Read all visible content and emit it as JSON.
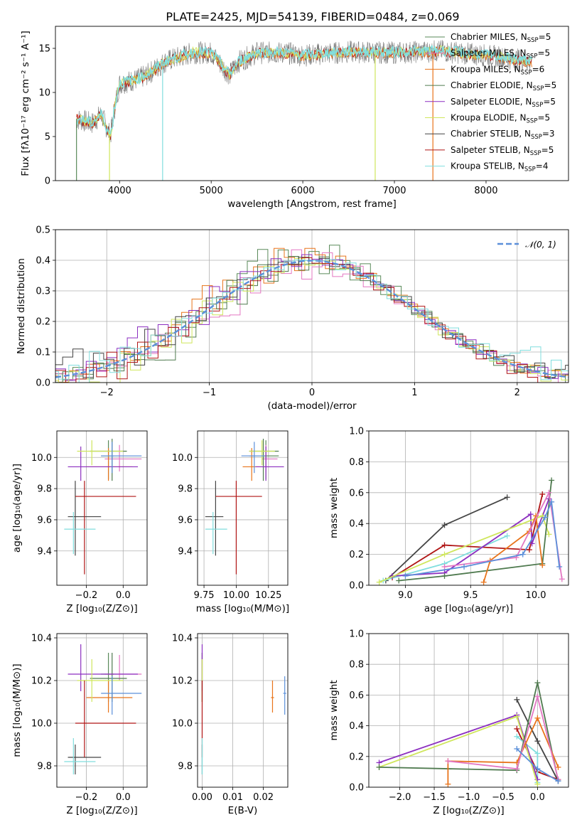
{
  "title": "PLATE=2425, MJD=54139, FIBERID=0484, z=0.069",
  "colors": {
    "Chabrier MILES": "#5a8a5a",
    "Salpeter MILES": "#e377c2",
    "Kroupa MILES": "#e8741b",
    "Chabrier ELODIE": "#4f7a4f",
    "Salpeter ELODIE": "#8c2fc0",
    "Kroupa ELODIE": "#cfe65c",
    "Chabrier STELIB": "#444444",
    "Salpeter STELIB": "#b01515",
    "Kroupa STELIB": "#80dede",
    "blue": "#5b8fd9",
    "gauss": "#5b8fd9"
  },
  "chart_data": [
    {
      "type": "line",
      "title": "PLATE=2425, MJD=54139, FIBERID=0484, z=0.069",
      "xlabel": "wavelength [Angstrom, rest frame]",
      "ylabel": "Flux [fλ10⁻¹⁷ erg cm⁻² s⁻¹ A⁻¹]",
      "xlim": [
        3300,
        8900
      ],
      "ylim": [
        0,
        17.5
      ],
      "xticks": [
        4000,
        5000,
        6000,
        7000,
        8000
      ],
      "yticks": [
        0,
        5,
        10,
        15
      ],
      "legend_position": "upper right",
      "legend": [
        {
          "model": "Chabrier MILES",
          "label": "Chabrier MILES, N",
          "n": "=5"
        },
        {
          "model": "Salpeter MILES",
          "label": "Salpeter MILES, N",
          "n": "=5"
        },
        {
          "model": "Kroupa MILES",
          "label": "Kroupa MILES, N",
          "n": "=6"
        },
        {
          "model": "Chabrier ELODIE",
          "label": "Chabrier ELODIE, N",
          "n": "=5"
        },
        {
          "model": "Salpeter ELODIE",
          "label": "Salpeter ELODIE, N",
          "n": "=5"
        },
        {
          "model": "Kroupa ELODIE",
          "label": "Kroupa ELODIE, N",
          "n": "=5"
        },
        {
          "model": "Chabrier STELIB",
          "label": "Chabrier STELIB, N",
          "n": "=3"
        },
        {
          "model": "Salpeter STELIB",
          "label": "Salpeter STELIB, N",
          "n": "=5"
        },
        {
          "model": "Kroupa STELIB",
          "label": "Kroupa STELIB, N",
          "n": "=4"
        }
      ],
      "legend_sub": "SSP",
      "continuum": [
        [
          3530,
          7.0
        ],
        [
          3700,
          6.5
        ],
        [
          3800,
          7.5
        ],
        [
          3900,
          5.0
        ],
        [
          3950,
          8.5
        ],
        [
          4000,
          11.0
        ],
        [
          4200,
          11.5
        ],
        [
          4300,
          12.0
        ],
        [
          4500,
          13.5
        ],
        [
          4800,
          14.5
        ],
        [
          5000,
          14.5
        ],
        [
          5200,
          12.0
        ],
        [
          5300,
          13.5
        ],
        [
          5500,
          14.5
        ],
        [
          5800,
          14.5
        ],
        [
          6000,
          14.2
        ],
        [
          6500,
          14.6
        ],
        [
          7000,
          14.5
        ],
        [
          7500,
          14.7
        ],
        [
          8000,
          14.2
        ],
        [
          8500,
          13.5
        ]
      ],
      "dips": [
        {
          "x": 3890,
          "model": "Kroupa ELODIE",
          "to": 0.0
        },
        {
          "x": 4470,
          "model": "Kroupa STELIB",
          "to": 0.0
        },
        {
          "x": 6790,
          "model": "Kroupa ELODIE",
          "to": 0.0
        },
        {
          "x": 7420,
          "model": "Kroupa MILES",
          "to": 0.0
        },
        {
          "x": 3530,
          "model": "Chabrier MILES",
          "to": 0.0
        }
      ]
    },
    {
      "type": "line",
      "xlabel": "(data-model)/error",
      "ylabel": "Normed distribution",
      "xlim": [
        -2.5,
        2.5
      ],
      "ylim": [
        0,
        0.5
      ],
      "xticks": [
        -2,
        -1,
        0,
        1,
        2
      ],
      "yticks": [
        0.0,
        0.1,
        0.2,
        0.3,
        0.4,
        0.5
      ],
      "legend": "𝒩(0, 1)",
      "legend_position": "upper right",
      "bin_width": 0.1,
      "grid": true
    },
    {
      "type": "scatter",
      "xlabel": "Z [log₁₀(Z/Z⊙)]",
      "ylabel": "age  [log₁₀(age/yr)]",
      "xlim": [
        -0.36,
        0.13
      ],
      "ylim": [
        9.18,
        10.17
      ],
      "xticks": [
        -0.2,
        0.0
      ],
      "yticks": [
        9.4,
        9.6,
        9.8,
        10.0
      ],
      "grid": true
    },
    {
      "type": "scatter",
      "xlabel": "mass [log₁₀(M/M⊙)]",
      "ylabel": "",
      "xlim": [
        9.7,
        10.4
      ],
      "ylim": [
        9.18,
        10.17
      ],
      "xticks": [
        9.75,
        10.0,
        10.25
      ],
      "yticks": [
        9.4,
        9.6,
        9.8,
        10.0
      ],
      "grid": true
    },
    {
      "type": "line",
      "xlabel": "age  [log₁₀(age/yr)]",
      "ylabel": "mass weight",
      "xlim": [
        8.72,
        10.25
      ],
      "ylim": [
        0,
        1.0
      ],
      "xticks": [
        9.0,
        9.5,
        10.0
      ],
      "yticks": [
        0.0,
        0.2,
        0.4,
        0.6,
        0.8,
        1.0
      ],
      "grid": true
    },
    {
      "type": "scatter",
      "xlabel": "Z [log₁₀(Z/Z⊙)]",
      "ylabel": "mass [log₁₀(M/M⊙)]",
      "xlim": [
        -0.36,
        0.13
      ],
      "ylim": [
        9.7,
        10.42
      ],
      "xticks": [
        -0.2,
        0.0
      ],
      "yticks": [
        9.8,
        10.0,
        10.2,
        10.4
      ],
      "grid": true
    },
    {
      "type": "scatter",
      "xlabel": "E(B-V)",
      "ylabel": "",
      "xlim": [
        -0.0015,
        0.028
      ],
      "ylim": [
        9.7,
        10.42
      ],
      "xticks": [
        0.0,
        0.01,
        0.02
      ],
      "yticks": [
        9.8,
        10.0,
        10.2,
        10.4
      ],
      "grid": true
    },
    {
      "type": "line",
      "xlabel": "Z [log₁₀(Z/Z⊙)]",
      "ylabel": "mass weight",
      "xlim": [
        -2.45,
        0.45
      ],
      "ylim": [
        0,
        1.0
      ],
      "xticks": [
        -2.0,
        -1.5,
        -1.0,
        -0.5,
        0.0
      ],
      "yticks": [
        0.0,
        0.2,
        0.4,
        0.6,
        0.8,
        1.0
      ],
      "grid": true
    }
  ],
  "fits": [
    {
      "model": "Chabrier MILES",
      "Z": -0.08,
      "Zerr": [
        -0.12,
        -0.05
      ],
      "age": 10.01,
      "ageerr": [
        9.86,
        10.11
      ],
      "mass": 10.23,
      "masserr": [
        10.1,
        10.33
      ],
      "ebv": 0.0,
      "ebverr": [
        0.0,
        0.0
      ]
    },
    {
      "model": "Salpeter MILES",
      "Z": -0.02,
      "Zerr": [
        -0.1,
        0.1
      ],
      "age": 9.99,
      "ageerr": [
        9.91,
        10.08
      ],
      "mass": 10.23,
      "masserr": [
        10.2,
        10.32
      ],
      "ebv": 0.0,
      "ebverr": [
        0.0,
        0.0
      ]
    },
    {
      "model": "Kroupa MILES",
      "Z": -0.08,
      "Zerr": [
        -0.2,
        0.05
      ],
      "age": 9.94,
      "ageerr": [
        9.85,
        10.06
      ],
      "mass": 10.12,
      "masserr": [
        10.05,
        10.2
      ],
      "ebv": 0.023,
      "ebverr": [
        0.0225,
        0.0235
      ]
    },
    {
      "model": "Chabrier ELODIE",
      "Z": -0.06,
      "Zerr": [
        -0.18,
        0.02
      ],
      "age": 10.04,
      "ageerr": [
        9.85,
        10.12
      ],
      "mass": 10.21,
      "masserr": [
        10.1,
        10.33
      ],
      "ebv": 0.0,
      "ebverr": [
        0.0,
        0.0
      ]
    },
    {
      "model": "Salpeter ELODIE",
      "Z": -0.23,
      "Zerr": [
        -0.3,
        0.08
      ],
      "age": 9.94,
      "ageerr": [
        9.85,
        10.07
      ],
      "mass": 10.23,
      "masserr": [
        10.15,
        10.37
      ],
      "ebv": 0.0,
      "ebverr": [
        0.0,
        0.0
      ]
    },
    {
      "model": "Kroupa ELODIE",
      "Z": -0.17,
      "Zerr": [
        -0.25,
        0.0
      ],
      "age": 10.04,
      "ageerr": [
        9.95,
        10.11
      ],
      "mass": 10.2,
      "masserr": [
        10.1,
        10.3
      ],
      "ebv": 0.0,
      "ebverr": [
        0.0,
        0.0
      ]
    },
    {
      "model": "Chabrier STELIB",
      "Z": -0.26,
      "Zerr": [
        -0.3,
        -0.12
      ],
      "age": 9.62,
      "ageerr": [
        9.37,
        9.85
      ],
      "mass": 9.84,
      "masserr": [
        9.76,
        9.9
      ],
      "ebv": 0.0,
      "ebverr": [
        0.0,
        0.0
      ]
    },
    {
      "model": "Salpeter STELIB",
      "Z": -0.21,
      "Zerr": [
        -0.26,
        0.07
      ],
      "age": 9.75,
      "ageerr": [
        9.25,
        9.85
      ],
      "mass": 10.0,
      "masserr": [
        9.84,
        10.2
      ],
      "ebv": 0.0,
      "ebverr": [
        0.0,
        0.0
      ]
    },
    {
      "model": "Kroupa STELIB",
      "Z": -0.27,
      "Zerr": [
        -0.32,
        -0.15
      ],
      "age": 9.54,
      "ageerr": [
        9.38,
        9.65
      ],
      "mass": 9.82,
      "masserr": [
        9.76,
        9.93
      ],
      "ebv": 0.0,
      "ebverr": [
        0.0,
        0.0
      ]
    },
    {
      "model": "blue",
      "Z": -0.06,
      "Zerr": [
        -0.12,
        0.1
      ],
      "age": 10.01,
      "ageerr": [
        9.9,
        10.1
      ],
      "mass": 10.14,
      "masserr": [
        10.04,
        10.22
      ],
      "ebv": 0.027,
      "ebverr": [
        0.0265,
        0.0275
      ]
    }
  ],
  "mass_weight_age": [
    {
      "model": "Chabrier STELIB",
      "points": [
        [
          8.85,
          0.03
        ],
        [
          9.3,
          0.39
        ],
        [
          9.78,
          0.57
        ]
      ]
    },
    {
      "model": "Salpeter STELIB",
      "points": [
        [
          8.9,
          0.05
        ],
        [
          9.3,
          0.26
        ],
        [
          9.95,
          0.23
        ],
        [
          10.05,
          0.59
        ]
      ]
    },
    {
      "model": "Kroupa STELIB",
      "points": [
        [
          8.83,
          0.03
        ],
        [
          9.3,
          0.14
        ],
        [
          9.78,
          0.32
        ]
      ]
    },
    {
      "model": "Salpeter ELODIE",
      "points": [
        [
          8.9,
          0.06
        ],
        [
          9.3,
          0.08
        ],
        [
          9.96,
          0.46
        ],
        [
          9.97,
          0.27
        ],
        [
          10.1,
          0.56
        ]
      ]
    },
    {
      "model": "Kroupa ELODIE",
      "points": [
        [
          8.8,
          0.02
        ],
        [
          9.3,
          0.2
        ],
        [
          10.05,
          0.45
        ],
        [
          10.1,
          0.33
        ]
      ]
    },
    {
      "model": "Chabrier ELODIE",
      "points": [
        [
          8.95,
          0.03
        ],
        [
          9.3,
          0.06
        ],
        [
          10.05,
          0.14
        ],
        [
          10.12,
          0.68
        ]
      ]
    },
    {
      "model": "Kroupa MILES",
      "points": [
        [
          9.6,
          0.02
        ],
        [
          9.65,
          0.16
        ],
        [
          9.95,
          0.35
        ],
        [
          10.0,
          0.45
        ],
        [
          10.05,
          0.13
        ]
      ]
    },
    {
      "model": "Salpeter MILES",
      "points": [
        [
          9.3,
          0.12
        ],
        [
          9.85,
          0.18
        ],
        [
          10.1,
          0.6
        ],
        [
          10.2,
          0.04
        ]
      ]
    },
    {
      "model": "blue",
      "points": [
        [
          9.0,
          0.06
        ],
        [
          9.45,
          0.12
        ],
        [
          9.9,
          0.2
        ],
        [
          10.07,
          0.44
        ],
        [
          10.12,
          0.54
        ],
        [
          10.18,
          0.12
        ]
      ]
    }
  ],
  "mass_weight_Z": [
    {
      "model": "Chabrier STELIB",
      "points": [
        [
          -0.3,
          0.57
        ],
        [
          0.0,
          0.3
        ],
        [
          0.3,
          0.04
        ]
      ]
    },
    {
      "model": "Salpeter STELIB",
      "points": [
        [
          -0.3,
          0.38
        ],
        [
          0.0,
          0.1
        ],
        [
          0.3,
          0.05
        ]
      ]
    },
    {
      "model": "Kroupa STELIB",
      "points": [
        [
          -0.3,
          0.33
        ],
        [
          0.0,
          0.22
        ],
        [
          0.0,
          0.03
        ]
      ]
    },
    {
      "model": "Salpeter ELODIE",
      "points": [
        [
          -2.3,
          0.16
        ],
        [
          -0.3,
          0.47
        ],
        [
          0.0,
          0.05
        ]
      ]
    },
    {
      "model": "Kroupa ELODIE",
      "points": [
        [
          -2.3,
          0.13
        ],
        [
          -0.3,
          0.46
        ],
        [
          0.0,
          0.02
        ]
      ]
    },
    {
      "model": "Chabrier ELODIE",
      "points": [
        [
          -2.3,
          0.13
        ],
        [
          -0.3,
          0.11
        ],
        [
          0.0,
          0.68
        ],
        [
          0.3,
          0.04
        ]
      ]
    },
    {
      "model": "Kroupa MILES",
      "points": [
        [
          -1.3,
          0.02
        ],
        [
          -1.3,
          0.17
        ],
        [
          -0.3,
          0.16
        ],
        [
          0.0,
          0.45
        ],
        [
          0.3,
          0.13
        ]
      ]
    },
    {
      "model": "Salpeter MILES",
      "points": [
        [
          -1.3,
          0.17
        ],
        [
          -0.3,
          0.12
        ],
        [
          0.0,
          0.59
        ],
        [
          0.3,
          0.05
        ]
      ]
    },
    {
      "model": "blue",
      "points": [
        [
          -0.3,
          0.25
        ],
        [
          0.0,
          0.12
        ],
        [
          0.3,
          0.04
        ]
      ]
    }
  ],
  "hist_bumps": [
    0.0,
    0.01,
    -0.015,
    0.02,
    -0.01,
    0.015,
    0.005,
    -0.02,
    0.012,
    -0.006,
    0.018,
    -0.012,
    0.008,
    0.025,
    -0.018,
    0.01,
    0.03,
    -0.01,
    0.022,
    0.04,
    0.06,
    0.08,
    -0.02,
    0.05,
    0.02,
    -0.01,
    0.03,
    -0.04,
    0.06,
    0.02,
    -0.03,
    0.04,
    0.02,
    -0.02,
    0.03,
    0.01,
    -0.015,
    0.02,
    0.005,
    -0.01,
    0.015,
    0.01,
    -0.005,
    0.012,
    0.0,
    0.01,
    -0.01,
    0.008,
    0.005,
    0.0
  ]
}
